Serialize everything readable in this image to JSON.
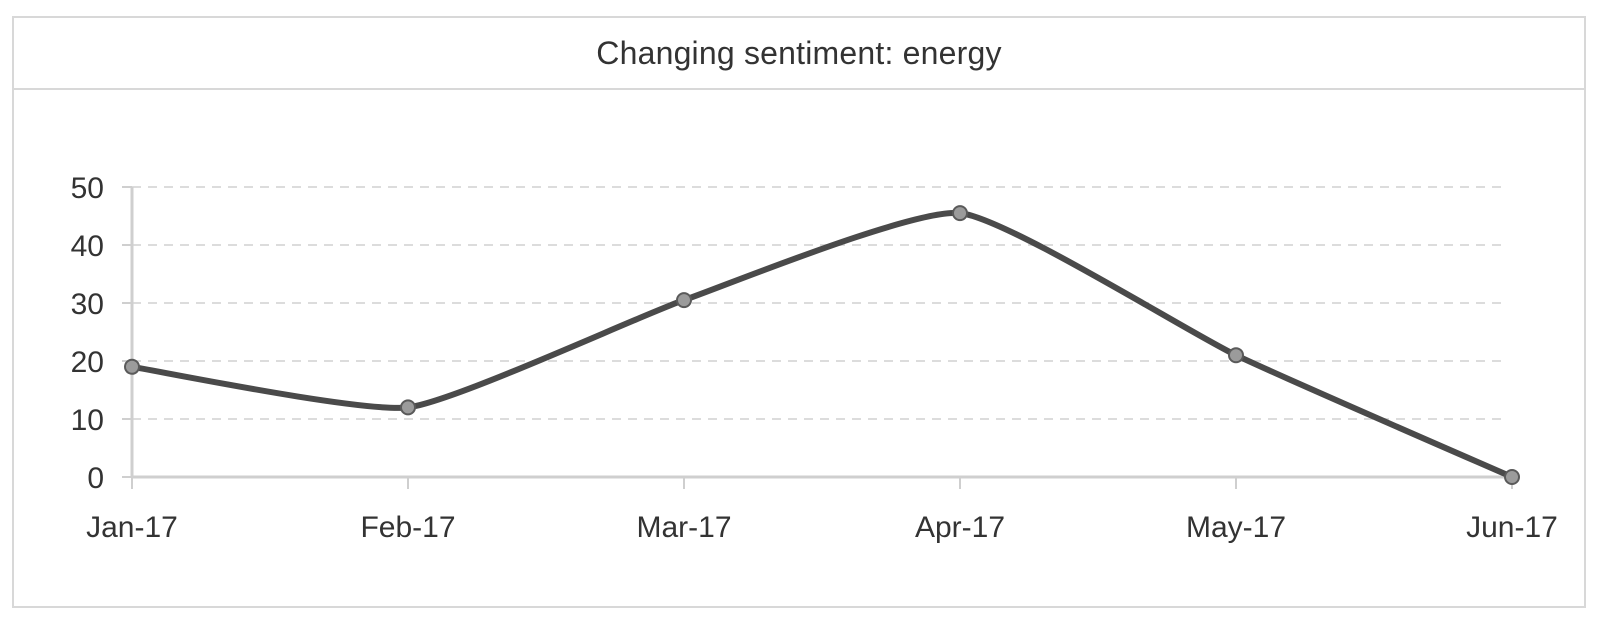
{
  "panel": {
    "title": "Changing sentiment: energy"
  },
  "chart_data": {
    "type": "line",
    "title": "Changing sentiment: energy",
    "xlabel": "",
    "ylabel": "",
    "categories": [
      "Jan-17",
      "Feb-17",
      "Mar-17",
      "Apr-17",
      "May-17",
      "Jun-17"
    ],
    "series": [
      {
        "values": [
          19,
          12,
          30.5,
          45.5,
          21,
          0
        ]
      }
    ],
    "yticks": [
      0,
      10,
      20,
      30,
      40,
      50
    ],
    "ylim": [
      0,
      50
    ],
    "grid": "horizontal dashed",
    "line_style": "smooth",
    "colors": {
      "line": "#4a4a4a",
      "marker_fill": "#9b9b9b",
      "marker_stroke": "#5a5a5a",
      "grid": "#dcdcdc",
      "axis": "#cfcfcf"
    }
  }
}
